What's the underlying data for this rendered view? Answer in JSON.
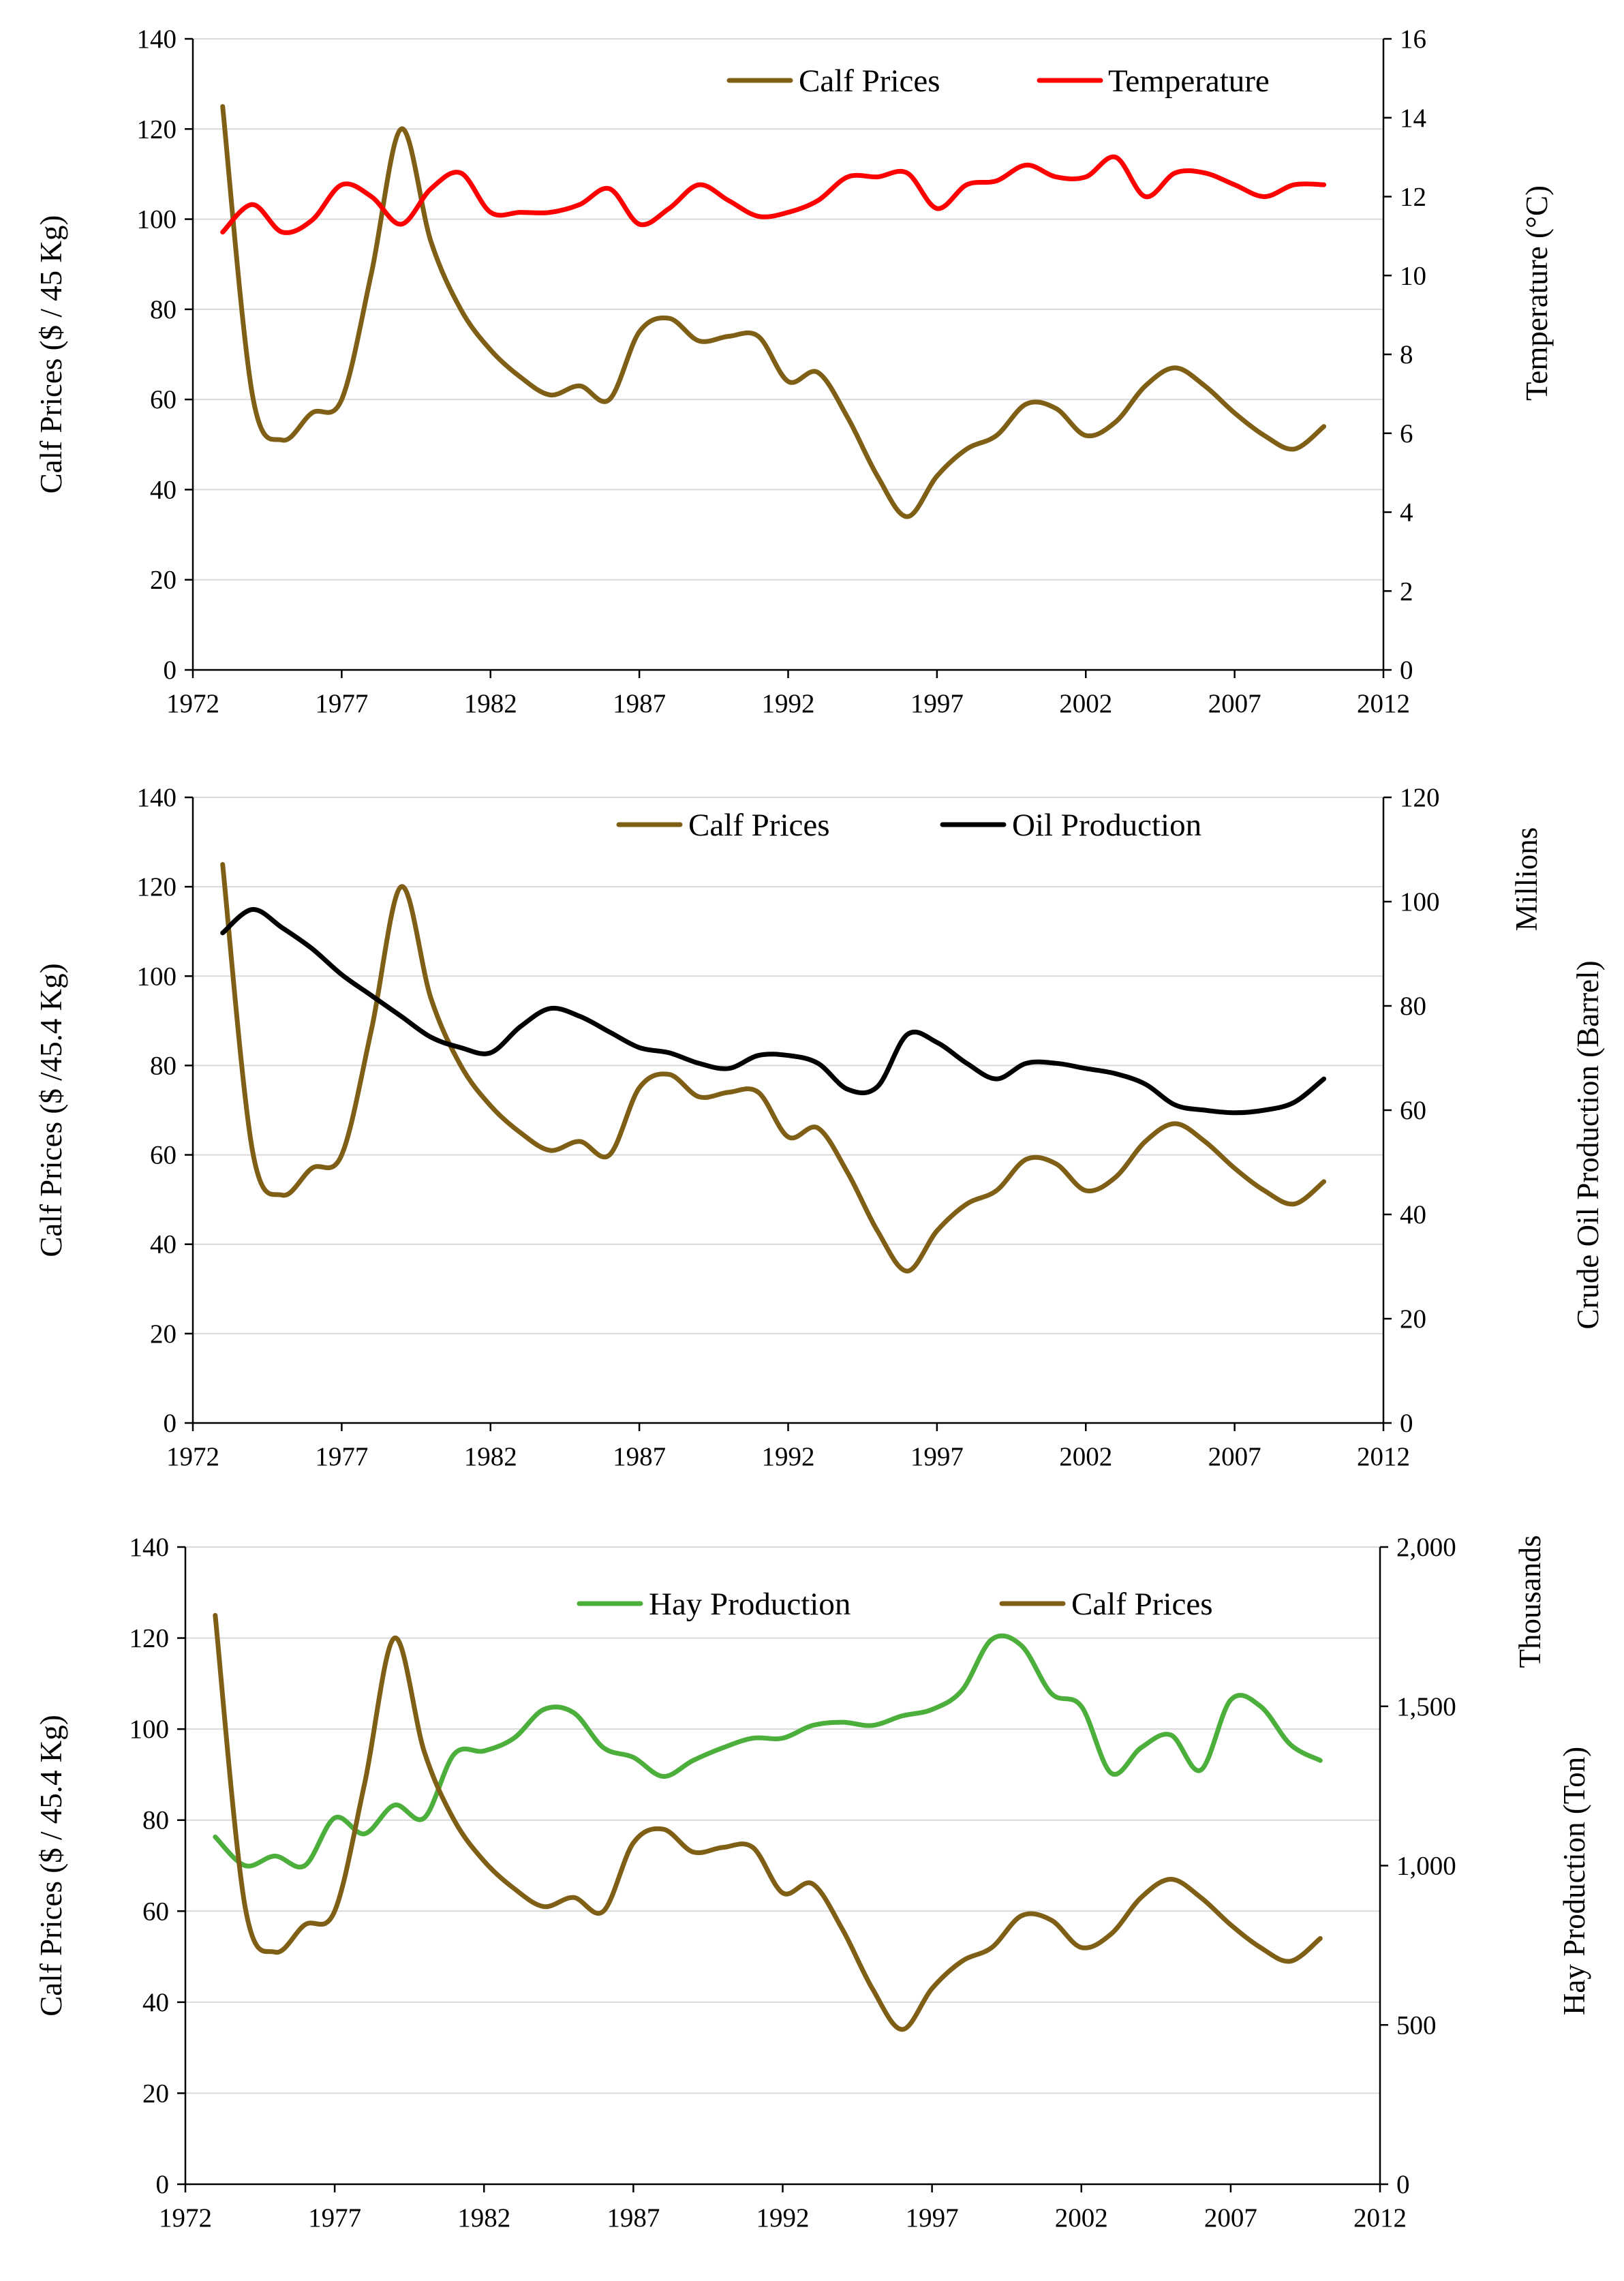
{
  "chart_data": [
    {
      "type": "line",
      "panel": "top",
      "x": [
        1973,
        1974,
        1975,
        1976,
        1977,
        1978,
        1979,
        1980,
        1981,
        1982,
        1983,
        1984,
        1985,
        1986,
        1987,
        1988,
        1989,
        1990,
        1991,
        1992,
        1993,
        1994,
        1995,
        1996,
        1997,
        1998,
        1999,
        2000,
        2001,
        2002,
        2003,
        2004,
        2005,
        2006,
        2007,
        2008,
        2009,
        2010
      ],
      "xlim": [
        1972,
        2012
      ],
      "xticks": [
        1972,
        1977,
        1982,
        1987,
        1992,
        1997,
        2002,
        2007,
        2012
      ],
      "ylim_left": [
        0,
        140
      ],
      "yticks_left": [
        0,
        20,
        40,
        60,
        80,
        100,
        120,
        140
      ],
      "ylim_right": [
        0,
        16
      ],
      "yticks_right": [
        0,
        2,
        4,
        6,
        8,
        10,
        12,
        14,
        16
      ],
      "ylabel_left": "Calf  Prices ($ / 45 Kg)",
      "ylabel_right": "Temperature  (°C)",
      "right_unit_label": "",
      "grid": true,
      "legend_position": "top-right",
      "series": [
        {
          "name": "Calf Prices",
          "axis": "left",
          "color": "#7f5f15",
          "values": [
            125,
            61,
            51,
            57,
            60,
            88,
            120,
            95,
            80,
            71,
            65,
            61,
            63,
            60,
            75,
            78,
            73,
            74,
            74,
            64,
            66,
            56,
            43,
            34,
            43,
            49,
            52,
            59,
            58,
            52,
            55,
            63,
            67,
            63,
            57,
            52,
            49,
            54
          ]
        },
        {
          "name": "Temperature",
          "axis": "right",
          "color": "#ff0000",
          "values": [
            11.1,
            11.8,
            11.1,
            11.4,
            12.3,
            12.0,
            11.3,
            12.2,
            12.6,
            11.6,
            11.6,
            11.6,
            11.8,
            12.2,
            11.3,
            11.7,
            12.3,
            11.9,
            11.5,
            11.6,
            11.9,
            12.5,
            12.5,
            12.6,
            11.7,
            12.3,
            12.4,
            12.8,
            12.5,
            12.5,
            13.0,
            12.0,
            12.6,
            12.6,
            12.3,
            12.0,
            12.3,
            12.3
          ]
        }
      ]
    },
    {
      "type": "line",
      "panel": "middle",
      "x": [
        1973,
        1974,
        1975,
        1976,
        1977,
        1978,
        1979,
        1980,
        1981,
        1982,
        1983,
        1984,
        1985,
        1986,
        1987,
        1988,
        1989,
        1990,
        1991,
        1992,
        1993,
        1994,
        1995,
        1996,
        1997,
        1998,
        1999,
        2000,
        2001,
        2002,
        2003,
        2004,
        2005,
        2006,
        2007,
        2008,
        2009,
        2010
      ],
      "xlim": [
        1972,
        2012
      ],
      "xticks": [
        1972,
        1977,
        1982,
        1987,
        1992,
        1997,
        2002,
        2007,
        2012
      ],
      "ylim_left": [
        0,
        140
      ],
      "yticks_left": [
        0,
        20,
        40,
        60,
        80,
        100,
        120,
        140
      ],
      "ylim_right": [
        0,
        120
      ],
      "yticks_right": [
        0,
        20,
        40,
        60,
        80,
        100,
        120
      ],
      "ylabel_left": "Calf  Prices ($ /45.4 Kg)",
      "ylabel_right": "Crude Oil Production (Barrel)",
      "right_unit_label": "Millions",
      "grid": true,
      "legend_position": "top-right",
      "series": [
        {
          "name": "Calf  Prices",
          "axis": "left",
          "color": "#7f5f15",
          "values": [
            125,
            61,
            51,
            57,
            60,
            88,
            120,
            95,
            80,
            71,
            65,
            61,
            63,
            60,
            75,
            78,
            73,
            74,
            74,
            64,
            66,
            56,
            43,
            34,
            43,
            49,
            52,
            59,
            58,
            52,
            55,
            63,
            67,
            63,
            57,
            52,
            49,
            54
          ]
        },
        {
          "name": "Oil Production",
          "axis": "right",
          "color": "#000000",
          "values": [
            94,
            98.5,
            95,
            91,
            86,
            82,
            78,
            74,
            72,
            71,
            76,
            79.5,
            78,
            75,
            72,
            71,
            69,
            68,
            70.5,
            70.5,
            69,
            64,
            64.5,
            74.5,
            73,
            69,
            66,
            69,
            69,
            68,
            67,
            65,
            61,
            60,
            59.5,
            60,
            61.5,
            66
          ]
        }
      ]
    },
    {
      "type": "line",
      "panel": "bottom",
      "x": [
        1973,
        1974,
        1975,
        1976,
        1977,
        1978,
        1979,
        1980,
        1981,
        1982,
        1983,
        1984,
        1985,
        1986,
        1987,
        1988,
        1989,
        1990,
        1991,
        1992,
        1993,
        1994,
        1995,
        1996,
        1997,
        1998,
        1999,
        2000,
        2001,
        2002,
        2003,
        2004,
        2005,
        2006,
        2007,
        2008,
        2009,
        2010
      ],
      "xlim": [
        1972,
        2012
      ],
      "xticks": [
        1972,
        1977,
        1982,
        1987,
        1992,
        1997,
        2002,
        2007,
        2012
      ],
      "ylim_left": [
        0,
        140
      ],
      "yticks_left": [
        0,
        20,
        40,
        60,
        80,
        100,
        120,
        140
      ],
      "ylim_right": [
        0,
        2000
      ],
      "yticks_right": [
        0,
        500,
        1000,
        1500,
        2000
      ],
      "yticklabels_right": [
        "0",
        "500",
        "1,000",
        "1,500",
        "2,000"
      ],
      "ylabel_left": "Calf  Prices ($ / 45.4 Kg)",
      "ylabel_right": "Hay Production (Ton)",
      "right_unit_label": "Thousands",
      "grid": true,
      "legend_position": "top-right",
      "series": [
        {
          "name": "Hay Production",
          "axis": "right",
          "color": "#4caf3c",
          "values": [
            1090,
            1000,
            1030,
            1000,
            1150,
            1100,
            1190,
            1150,
            1350,
            1360,
            1400,
            1490,
            1480,
            1370,
            1340,
            1280,
            1330,
            1370,
            1400,
            1400,
            1440,
            1450,
            1440,
            1470,
            1490,
            1550,
            1710,
            1690,
            1540,
            1500,
            1290,
            1370,
            1410,
            1300,
            1520,
            1500,
            1380,
            1330
          ]
        },
        {
          "name": "Calf Prices",
          "axis": "left",
          "color": "#7f5f15",
          "values": [
            125,
            61,
            51,
            57,
            60,
            88,
            120,
            95,
            80,
            71,
            65,
            61,
            63,
            60,
            75,
            78,
            73,
            74,
            74,
            64,
            66,
            56,
            43,
            34,
            43,
            49,
            52,
            59,
            58,
            52,
            55,
            63,
            67,
            63,
            57,
            52,
            49,
            54
          ]
        }
      ]
    }
  ]
}
